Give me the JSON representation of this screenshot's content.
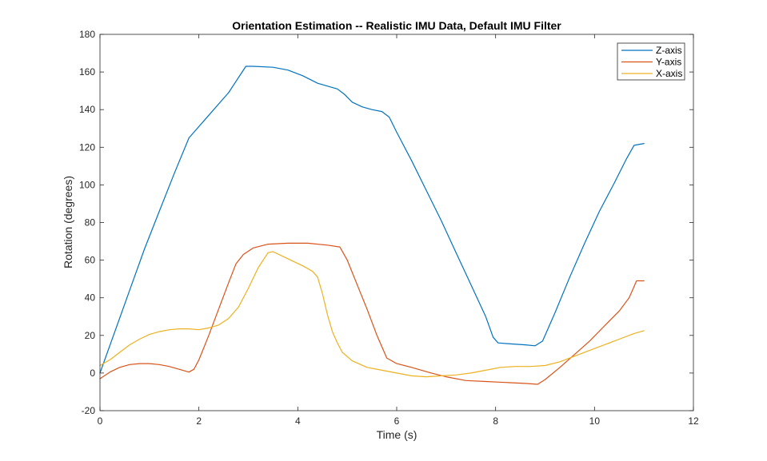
{
  "chart_data": {
    "type": "line",
    "title": "Orientation Estimation -- Realistic IMU Data, Default IMU Filter",
    "xlabel": "Time (s)",
    "ylabel": "Rotation (degrees)",
    "xlim": [
      0,
      12
    ],
    "ylim": [
      -20,
      180
    ],
    "xticks": [
      0,
      2,
      4,
      6,
      8,
      10,
      12
    ],
    "yticks": [
      -20,
      0,
      20,
      40,
      60,
      80,
      100,
      120,
      140,
      160,
      180
    ],
    "grid": false,
    "legend_position": "top-right",
    "series": [
      {
        "name": "Z-axis",
        "color": "#0072BD",
        "points": [
          [
            0,
            0
          ],
          [
            0.3,
            22
          ],
          [
            0.6,
            44
          ],
          [
            0.9,
            66
          ],
          [
            1.2,
            86
          ],
          [
            1.5,
            106
          ],
          [
            1.8,
            125
          ],
          [
            2.0,
            131
          ],
          [
            2.2,
            137
          ],
          [
            2.4,
            143
          ],
          [
            2.6,
            149
          ],
          [
            2.75,
            155
          ],
          [
            2.85,
            159
          ],
          [
            2.95,
            163
          ],
          [
            3.1,
            163
          ],
          [
            3.5,
            162.5
          ],
          [
            3.8,
            161
          ],
          [
            4.1,
            158
          ],
          [
            4.4,
            154
          ],
          [
            4.8,
            151
          ],
          [
            4.95,
            148
          ],
          [
            5.1,
            144
          ],
          [
            5.3,
            141.5
          ],
          [
            5.5,
            140
          ],
          [
            5.7,
            139
          ],
          [
            5.85,
            136
          ],
          [
            6.0,
            128
          ],
          [
            6.3,
            113
          ],
          [
            6.6,
            97
          ],
          [
            6.9,
            81
          ],
          [
            7.2,
            64
          ],
          [
            7.5,
            47
          ],
          [
            7.8,
            30
          ],
          [
            7.95,
            19
          ],
          [
            8.05,
            16
          ],
          [
            8.3,
            15.5
          ],
          [
            8.6,
            15
          ],
          [
            8.8,
            14.5
          ],
          [
            8.95,
            17
          ],
          [
            9.2,
            32
          ],
          [
            9.5,
            51
          ],
          [
            9.8,
            69
          ],
          [
            10.1,
            86
          ],
          [
            10.4,
            101
          ],
          [
            10.65,
            114
          ],
          [
            10.8,
            121
          ],
          [
            11.0,
            122
          ]
        ]
      },
      {
        "name": "Y-axis",
        "color": "#D95319",
        "points": [
          [
            0,
            -3
          ],
          [
            0.2,
            0.5
          ],
          [
            0.4,
            3
          ],
          [
            0.6,
            4.5
          ],
          [
            0.8,
            5
          ],
          [
            1.0,
            5
          ],
          [
            1.2,
            4.5
          ],
          [
            1.4,
            3.5
          ],
          [
            1.6,
            2
          ],
          [
            1.8,
            0.5
          ],
          [
            1.9,
            2
          ],
          [
            2.0,
            7
          ],
          [
            2.2,
            20
          ],
          [
            2.4,
            34
          ],
          [
            2.6,
            48
          ],
          [
            2.75,
            58
          ],
          [
            2.9,
            63
          ],
          [
            3.1,
            66.5
          ],
          [
            3.4,
            68.5
          ],
          [
            3.8,
            69
          ],
          [
            4.2,
            69
          ],
          [
            4.6,
            68
          ],
          [
            4.85,
            67
          ],
          [
            5.0,
            60
          ],
          [
            5.2,
            47
          ],
          [
            5.4,
            34
          ],
          [
            5.6,
            20
          ],
          [
            5.8,
            8
          ],
          [
            6.0,
            5
          ],
          [
            6.3,
            3
          ],
          [
            6.7,
            0
          ],
          [
            7.0,
            -2
          ],
          [
            7.4,
            -4
          ],
          [
            7.8,
            -4.5
          ],
          [
            8.2,
            -5
          ],
          [
            8.6,
            -5.5
          ],
          [
            8.85,
            -6
          ],
          [
            9.0,
            -3.5
          ],
          [
            9.3,
            3
          ],
          [
            9.6,
            10
          ],
          [
            9.9,
            17
          ],
          [
            10.2,
            25
          ],
          [
            10.5,
            33
          ],
          [
            10.7,
            40
          ],
          [
            10.8,
            46
          ],
          [
            10.85,
            49
          ],
          [
            11.0,
            49
          ]
        ]
      },
      {
        "name": "X-axis",
        "color": "#EDB120",
        "points": [
          [
            0,
            4
          ],
          [
            0.2,
            7
          ],
          [
            0.4,
            11
          ],
          [
            0.6,
            15
          ],
          [
            0.8,
            18
          ],
          [
            1.0,
            20.5
          ],
          [
            1.2,
            22
          ],
          [
            1.4,
            23
          ],
          [
            1.6,
            23.5
          ],
          [
            1.8,
            23.5
          ],
          [
            2.0,
            23
          ],
          [
            2.2,
            24
          ],
          [
            2.4,
            25.5
          ],
          [
            2.6,
            29
          ],
          [
            2.8,
            35
          ],
          [
            3.0,
            45
          ],
          [
            3.2,
            56
          ],
          [
            3.4,
            64
          ],
          [
            3.5,
            64.5
          ],
          [
            3.7,
            62
          ],
          [
            3.9,
            59.5
          ],
          [
            4.1,
            57
          ],
          [
            4.3,
            54
          ],
          [
            4.4,
            51
          ],
          [
            4.5,
            42
          ],
          [
            4.6,
            31
          ],
          [
            4.7,
            22
          ],
          [
            4.8,
            16
          ],
          [
            4.9,
            11
          ],
          [
            5.1,
            6.5
          ],
          [
            5.4,
            3
          ],
          [
            5.7,
            1.5
          ],
          [
            6.0,
            0
          ],
          [
            6.3,
            -1.5
          ],
          [
            6.6,
            -2
          ],
          [
            6.9,
            -1.5
          ],
          [
            7.2,
            -1
          ],
          [
            7.5,
            0
          ],
          [
            7.8,
            1.5
          ],
          [
            8.1,
            3
          ],
          [
            8.4,
            3.5
          ],
          [
            8.7,
            3.5
          ],
          [
            9.0,
            4
          ],
          [
            9.3,
            6
          ],
          [
            9.6,
            9
          ],
          [
            9.9,
            12
          ],
          [
            10.2,
            15
          ],
          [
            10.5,
            18
          ],
          [
            10.8,
            21
          ],
          [
            11.0,
            22.5
          ]
        ]
      }
    ]
  }
}
